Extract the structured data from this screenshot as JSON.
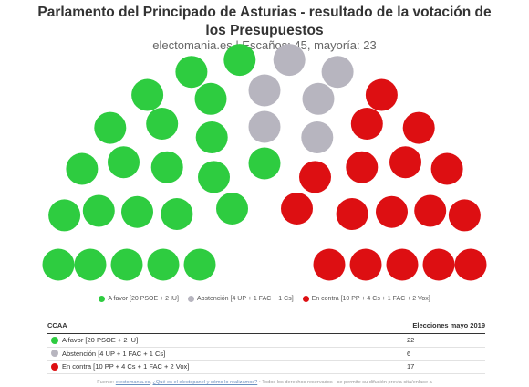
{
  "colors": {
    "favor": "#2ecc40",
    "abstencion": "#b7b5bf",
    "contra": "#dd0f12"
  },
  "chart_data": {
    "type": "parliament",
    "title": "Parlamento del Principado de Asturias - resultado de la votación de los Presupuestos",
    "subtitle": "electomania.es | Escaños: 45, mayoría: 23",
    "total_seats": 45,
    "majority": 23,
    "series": [
      {
        "name": "A favor [20 PSOE + 2 IU]",
        "seats": 22,
        "color": "#2ecc40"
      },
      {
        "name": "Abstención [4 UP + 1 FAC + 1 Cs]",
        "seats": 6,
        "color": "#b7b5bf"
      },
      {
        "name": "En contra [10 PP + 4 Cs + 1 FAC + 2 Vox]",
        "seats": 17,
        "color": "#dd0f12"
      }
    ],
    "legend_position": "bottom-center"
  },
  "table": {
    "col_ccaa": "CCAA",
    "col_elecciones": "Elecciones mayo 2019",
    "rows": [
      {
        "label": "A favor [20 PSOE + 2 IU]",
        "value": "22",
        "color": "#2ecc40"
      },
      {
        "label": "Abstención [4 UP + 1 FAC + 1 Cs]",
        "value": "6",
        "color": "#b7b5bf"
      },
      {
        "label": "En contra [10 PP + 4 Cs + 1 FAC + 2 Vox]",
        "value": "17",
        "color": "#dd0f12"
      }
    ]
  },
  "footer": {
    "prefix": "Fuente: ",
    "link1": "electomania.es",
    "sep": ", ",
    "link2": "¿Qué es el electopanel y cómo lo realizamos?",
    "suffix": " • Todos los derechos reservados - se permite su difusión previa cita/enlace a"
  }
}
